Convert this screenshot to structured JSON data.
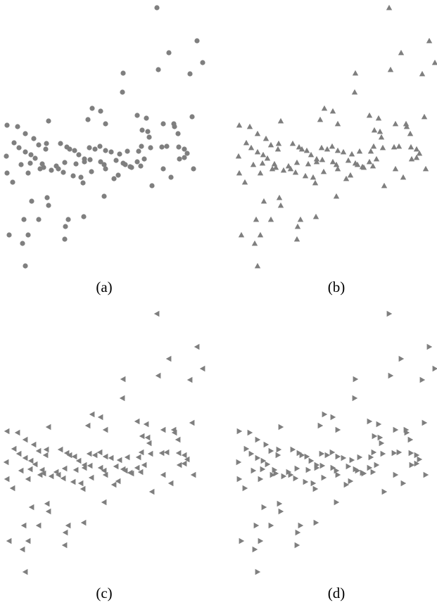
{
  "chart_data": {
    "type": "scatter",
    "color": "#7f7f7f",
    "xlim": [
      0,
      300
    ],
    "ylim": [
      0,
      390
    ],
    "x": [
      223,
      280,
      288,
      240,
      225,
      270,
      175,
      174,
      273,
      131,
      143,
      195,
      208,
      10,
      25,
      36,
      48,
      69,
      125,
      150,
      202,
      210,
      212,
      232,
      247,
      248,
      253,
      20,
      27,
      36,
      44,
      55,
      65,
      66,
      86,
      95,
      99,
      106,
      112,
      127,
      135,
      142,
      150,
      158,
      170,
      181,
      197,
      201,
      214,
      230,
      237,
      254,
      262,
      266,
      9,
      30,
      43,
      50,
      60,
      62,
      80,
      92,
      108,
      120,
      128,
      143,
      148,
      165,
      175,
      185,
      195,
      200,
      205,
      255,
      262,
      275,
      10,
      18,
      40,
      57,
      73,
      83,
      90,
      104,
      115,
      130,
      150,
      162,
      168,
      178,
      232,
      243,
      216,
      118,
      148,
      67,
      45,
      69,
      55,
      34,
      97,
      119,
      93,
      13,
      40,
      32,
      92,
      36,
      120,
      187
    ],
    "y": [
      379,
      332,
      301,
      315,
      291,
      285,
      286,
      259,
      224,
      236,
      232,
      226,
      222,
      212,
      210,
      200,
      193,
      218,
      220,
      214,
      205,
      203,
      195,
      214,
      214,
      210,
      200,
      187,
      180,
      174,
      170,
      184,
      178,
      186,
      186,
      181,
      178,
      176,
      170,
      180,
      178,
      182,
      176,
      174,
      171,
      175,
      175,
      182,
      180,
      181,
      182,
      181,
      178,
      172,
      168,
      156,
      158,
      165,
      157,
      152,
      154,
      159,
      157,
      160,
      163,
      160,
      156,
      162,
      158,
      153,
      160,
      154,
      164,
      164,
      166,
      150,
      144,
      131,
      144,
      150,
      148,
      150,
      145,
      140,
      138,
      146,
      150,
      136,
      141,
      156,
      150,
      138,
      126,
      130,
      111,
      109,
      104,
      98,
      78,
      78,
      78,
      82,
      68,
      56,
      56,
      44,
      50,
      12,
      164,
      152
    ],
    "panels": [
      {
        "label": "(a)",
        "marker": "circle"
      },
      {
        "label": "(b)",
        "marker": "triangle-up"
      },
      {
        "label": "(c)",
        "marker": "triangle-left"
      },
      {
        "label": "(d)",
        "marker": "triangle-right"
      }
    ]
  }
}
